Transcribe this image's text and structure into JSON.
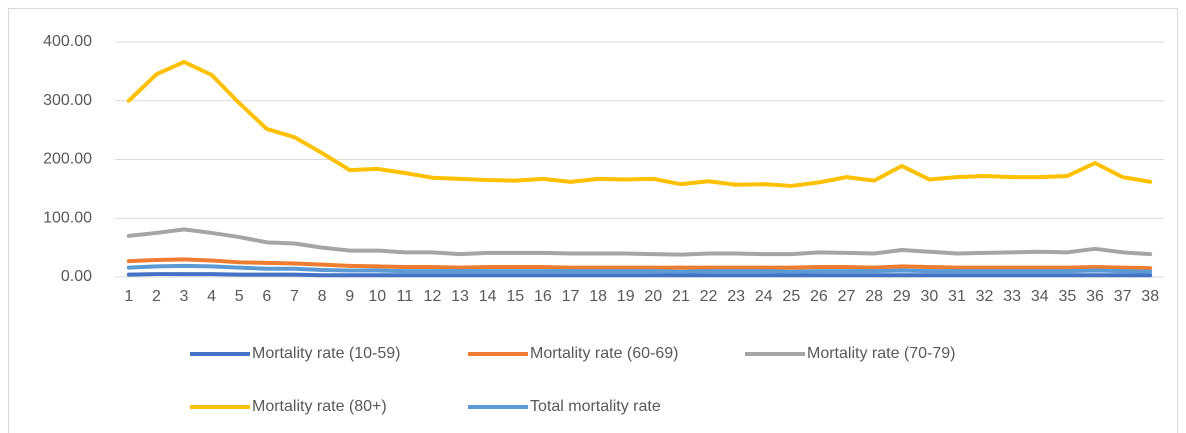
{
  "chart_data": {
    "type": "line",
    "categories": [
      1,
      2,
      3,
      4,
      5,
      6,
      7,
      8,
      9,
      10,
      11,
      12,
      13,
      14,
      15,
      16,
      17,
      18,
      19,
      20,
      21,
      22,
      23,
      24,
      25,
      26,
      27,
      28,
      29,
      30,
      31,
      32,
      33,
      34,
      35,
      36,
      37,
      38
    ],
    "series": [
      {
        "name": "Mortality rate (10-59)",
        "color": "#4472c4",
        "values": [
          4,
          5,
          5,
          5,
          4,
          4,
          4,
          3,
          3,
          3,
          3,
          3,
          3,
          3,
          3,
          3,
          3,
          3,
          3,
          3,
          3,
          3,
          3,
          3,
          3,
          3,
          3,
          3,
          3,
          3,
          3,
          3,
          3,
          3,
          3,
          3,
          3,
          3
        ]
      },
      {
        "name": "Mortality rate (60-69)",
        "color": "#ed7d31",
        "values": [
          27,
          29,
          30,
          28,
          25,
          24,
          23,
          21,
          19,
          18,
          17,
          17,
          16,
          17,
          17,
          17,
          16,
          16,
          16,
          16,
          16,
          16,
          16,
          16,
          16,
          17,
          17,
          16,
          18,
          17,
          16,
          16,
          16,
          16,
          16,
          17,
          16,
          15
        ]
      },
      {
        "name": "Mortality rate (70-79)",
        "color": "#a5a5a5",
        "values": [
          70,
          75,
          81,
          75,
          68,
          59,
          57,
          50,
          45,
          45,
          42,
          42,
          39,
          41,
          41,
          41,
          40,
          40,
          40,
          39,
          38,
          40,
          40,
          39,
          39,
          42,
          41,
          40,
          46,
          43,
          40,
          41,
          42,
          43,
          42,
          48,
          42,
          39
        ]
      },
      {
        "name": "Mortality rate (80+)",
        "color": "#ffc000",
        "values": [
          300,
          345,
          366,
          344,
          296,
          252,
          238,
          211,
          182,
          184,
          177,
          169,
          167,
          165,
          164,
          167,
          162,
          167,
          166,
          167,
          158,
          163,
          157,
          158,
          155,
          161,
          170,
          164,
          189,
          166,
          170,
          172,
          170,
          170,
          172,
          194,
          170,
          162
        ]
      },
      {
        "name": "Total mortality rate",
        "color": "#5b9bd5",
        "values": [
          16,
          18,
          19,
          18,
          16,
          14,
          14,
          12,
          11,
          11,
          10,
          10,
          10,
          10,
          10,
          10,
          10,
          10,
          10,
          10,
          9,
          10,
          10,
          10,
          9,
          10,
          10,
          10,
          11,
          10,
          10,
          10,
          10,
          10,
          10,
          11,
          10,
          9
        ]
      }
    ],
    "ylim": [
      0,
      400
    ],
    "yticks": [
      {
        "value": 0,
        "label": "0.00"
      },
      {
        "value": 100,
        "label": "100.00"
      },
      {
        "value": 200,
        "label": "200.00"
      },
      {
        "value": 300,
        "label": "300.00"
      },
      {
        "value": 400,
        "label": "400.00"
      }
    ],
    "grid": true
  }
}
